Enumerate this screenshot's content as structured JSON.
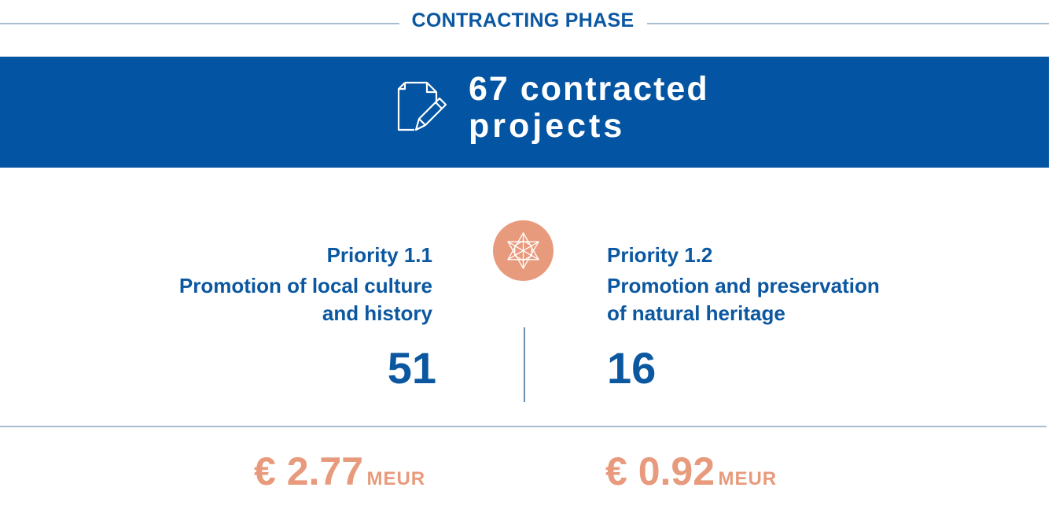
{
  "header": {
    "title": "CONTRACTING PHASE"
  },
  "banner": {
    "icon": "document-edit-icon",
    "line1": "67 contracted",
    "line2": "projects"
  },
  "center_icon": "star-mandala-icon",
  "priorities": [
    {
      "label": "Priority 1.1",
      "desc_line1": "Promotion of local culture",
      "desc_line2": "and history",
      "count": "51",
      "amount": "€ 2.77",
      "unit": "MEUR"
    },
    {
      "label": "Priority 1.2",
      "desc_line1": "Promotion and preservation",
      "desc_line2": "of natural heritage",
      "count": "16",
      "amount": "€ 0.92",
      "unit": "MEUR"
    }
  ],
  "colors": {
    "blue": "#0354a2",
    "text_blue": "#0b57a0",
    "salmon": "#e89a7c",
    "rule": "#a9bdd0"
  }
}
